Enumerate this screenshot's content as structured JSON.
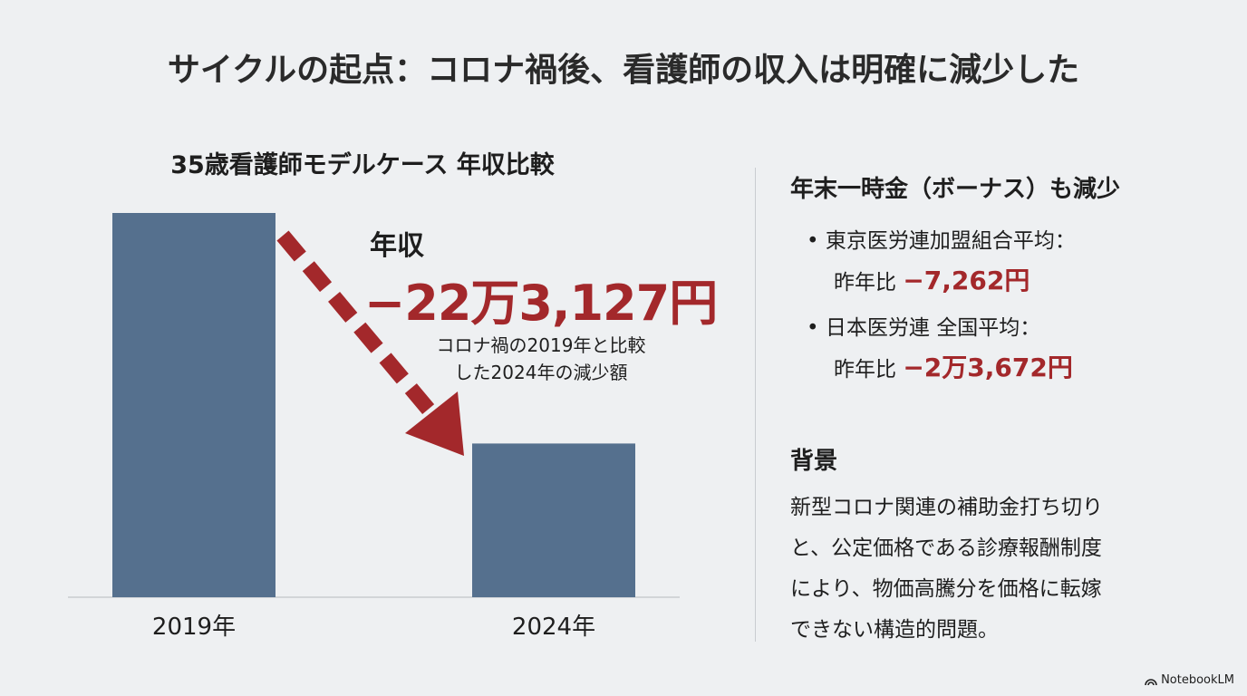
{
  "title": "サイクルの起点：コロナ禍後、看護師の収入は明確に減少した",
  "chart_data": {
    "type": "bar",
    "title": "35歳看護師モデルケース 年収比較",
    "categories": [
      "2019年",
      "2024年"
    ],
    "values": [
      1.0,
      0.4
    ],
    "value_note_relative": true,
    "bar_color": "#55708e",
    "annotation": {
      "label": "年収",
      "value": "−22万3,127円",
      "note_lines": [
        "コロナ禍の2019年と比較",
        "した2024年の減少額"
      ],
      "color": "#a3282b"
    }
  },
  "right": {
    "bonus_heading": "年末一時金（ボーナス）も減少",
    "bullets": [
      {
        "label": "東京医労連加盟組合平均：",
        "prefix": "昨年比",
        "value": "−7,262円"
      },
      {
        "label": "日本医労連 全国平均：",
        "prefix": "昨年比",
        "value": "−2万3,672円"
      }
    ],
    "background_heading": "背景",
    "background_lines": [
      "新型コロナ関連の補助金打ち切り",
      "と、公定価格である診療報酬制度",
      "により、物価高騰分を価格に転嫁",
      "できない構造的問題。"
    ]
  },
  "logo": "NotebookLM",
  "colors": {
    "accent": "#a3282b",
    "bar": "#55708e",
    "background": "#eef0f2"
  }
}
